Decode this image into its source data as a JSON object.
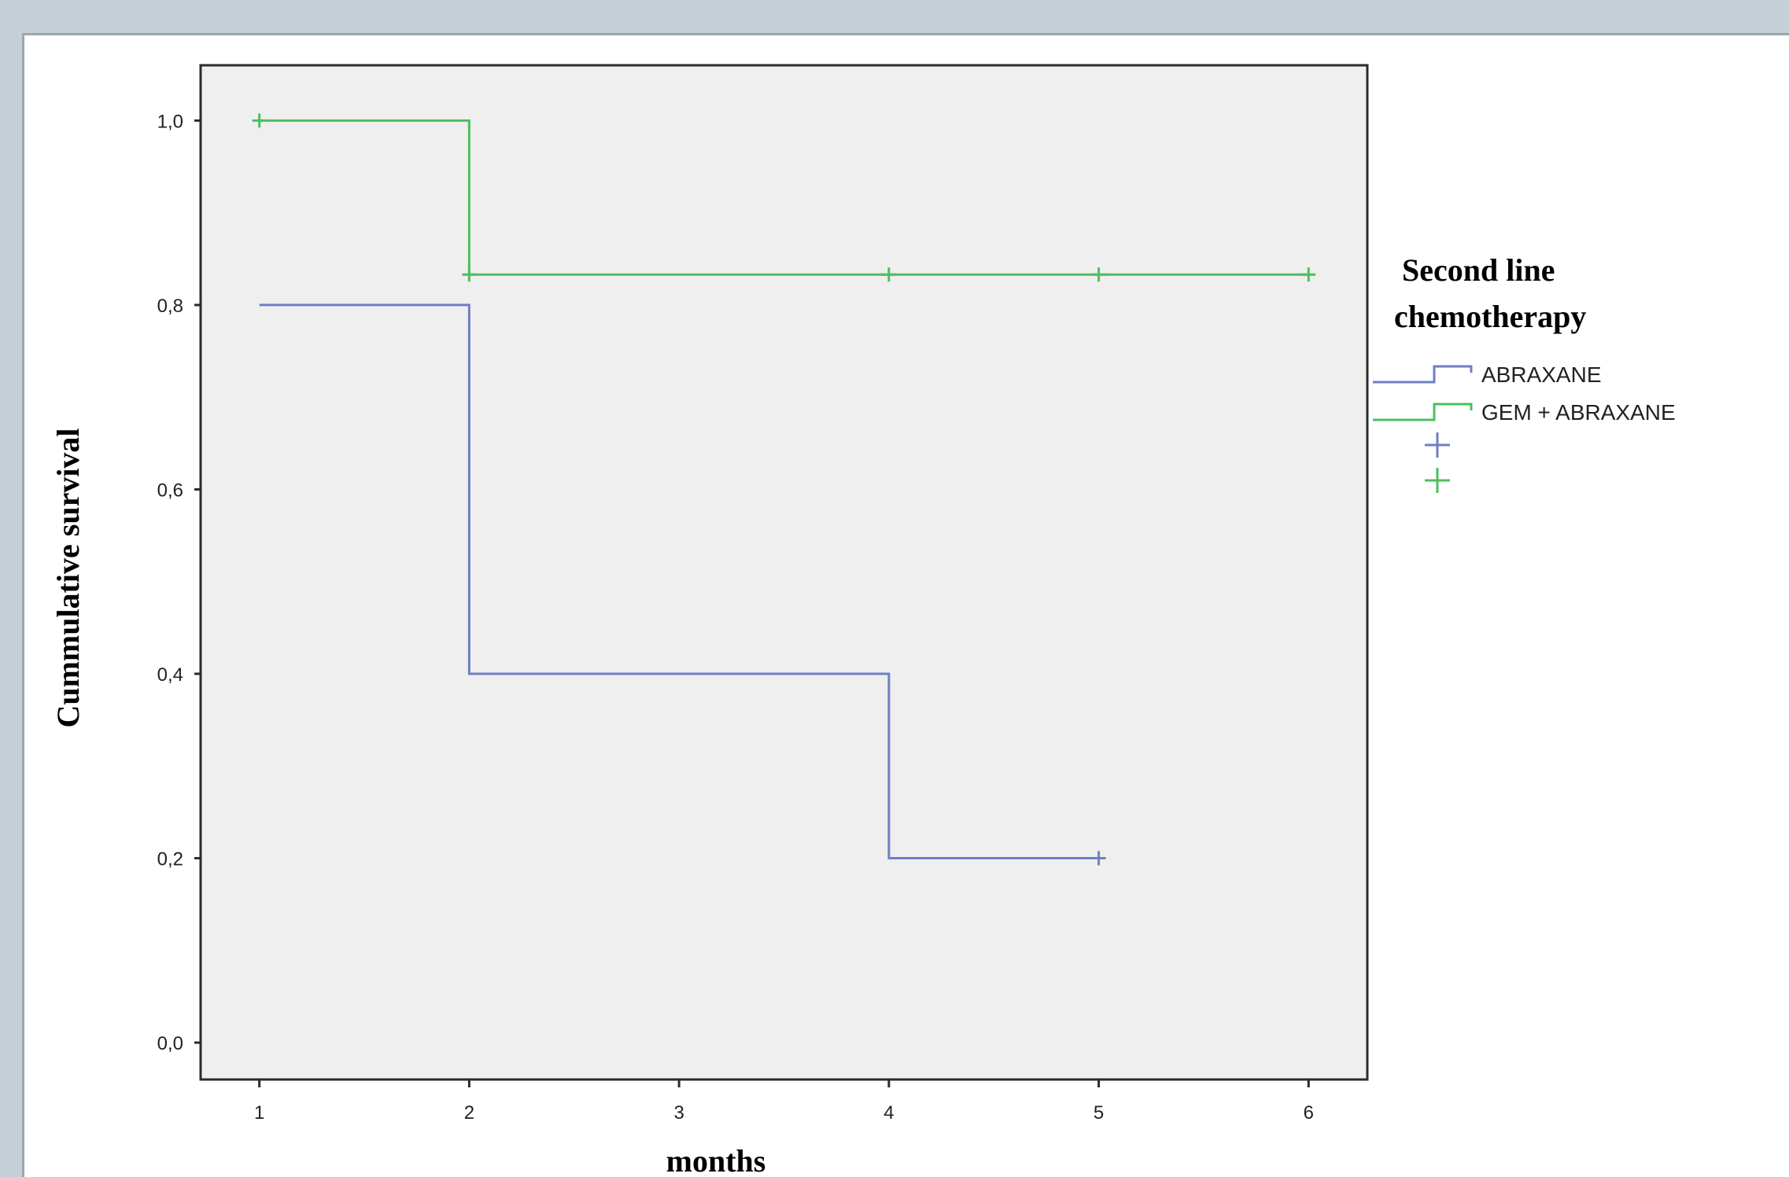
{
  "chart_data": {
    "type": "line",
    "subtype": "kaplan-meier step",
    "xlabel": "months",
    "ylabel": "Cummulative survival",
    "x_ticks": [
      "1",
      "2",
      "3",
      "4",
      "5",
      "6"
    ],
    "y_ticks": [
      "0,0",
      "0,2",
      "0,4",
      "0,6",
      "0,8",
      "1,0"
    ],
    "xlim": [
      0.72,
      6.28
    ],
    "ylim": [
      -0.04,
      1.06
    ],
    "grid": false,
    "legend": {
      "title_line1": "Second line",
      "title_line2": "chemotherapy",
      "placement": "right"
    },
    "series": [
      {
        "name": "ABRAXANE",
        "color": "#6f7fc4",
        "steps": [
          [
            1,
            0.8
          ],
          [
            2,
            0.8
          ],
          [
            2,
            0.4
          ],
          [
            4,
            0.4
          ],
          [
            4,
            0.2
          ],
          [
            5,
            0.2
          ]
        ],
        "censored": [
          [
            5,
            0.2
          ]
        ]
      },
      {
        "name": "GEM + ABRAXANE",
        "color": "#4cbf5e",
        "steps": [
          [
            1,
            1.0
          ],
          [
            2,
            1.0
          ],
          [
            2,
            0.833
          ],
          [
            6,
            0.833
          ]
        ],
        "censored": [
          [
            1,
            1.0
          ],
          [
            2,
            0.833
          ],
          [
            4,
            0.833
          ],
          [
            5,
            0.833
          ],
          [
            6,
            0.833
          ]
        ]
      }
    ]
  }
}
